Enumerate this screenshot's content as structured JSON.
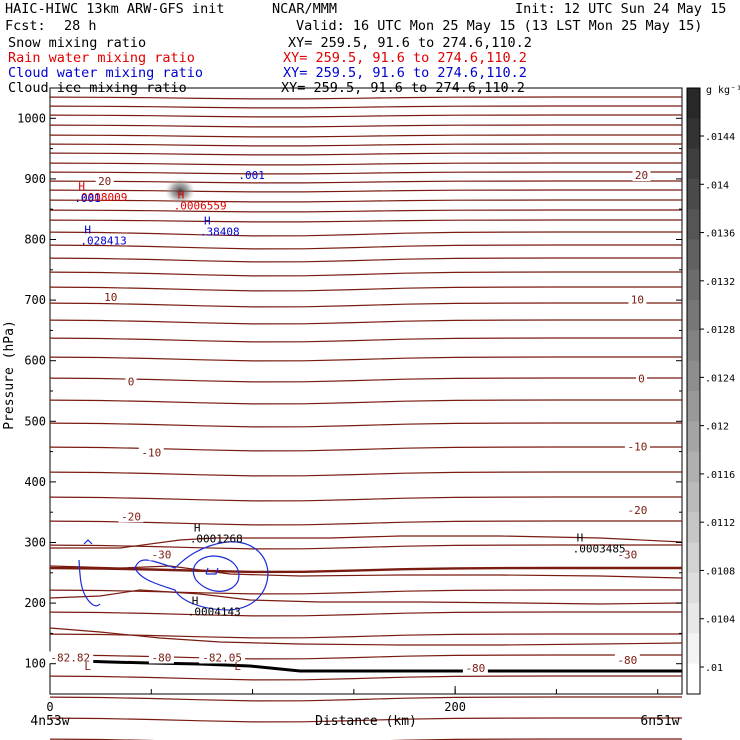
{
  "header": {
    "model": "HAIC-HIWC 13km ARW-GFS init",
    "org": "NCAR/MMM",
    "init": "Init: 12 UTC Sun 24 May 15",
    "fcst_label": "Fcst:",
    "fcst_value": "28 h",
    "valid": "Valid: 16 UTC Mon 25 May 15 (13 LST Mon 25 May 15)"
  },
  "fields": [
    {
      "name": "Snow mixing ratio",
      "xy": "XY= 259.5, 91.6 to 274.6,110.2",
      "color": "#000000"
    },
    {
      "name": "Rain water mixing ratio",
      "xy": "XY= 259.5, 91.6 to 274.6,110.2",
      "color": "#e00000"
    },
    {
      "name": "Cloud water mixing ratio",
      "xy": "XY= 259.5, 91.6 to 274.6,110.2",
      "color": "#0000d0"
    },
    {
      "name": "Cloud ice mixing ratio",
      "xy": "XY= 259.5, 91.6 to 274.6,110.2",
      "color": "#000000"
    }
  ],
  "chart_data": {
    "type": "contour-cross-section",
    "xlabel": "Distance (km)",
    "ylabel": "Pressure (hPa)",
    "xlim": [
      0,
      312
    ],
    "ylim": [
      1050,
      50
    ],
    "x_ticks": [
      0,
      200
    ],
    "y_ticks": [
      100,
      200,
      300,
      400,
      500,
      600,
      700,
      800,
      900,
      1000
    ],
    "x_endpoints": {
      "left": "4n53w",
      "right": "6n51w"
    },
    "temperature_contour_labels": [
      {
        "text": "-82.82",
        "x": 10,
        "p": 107
      },
      {
        "text": "-80",
        "x": 55,
        "p": 107
      },
      {
        "text": "-82.05",
        "x": 85,
        "p": 107
      },
      {
        "text": "-80",
        "x": 210,
        "p": 90
      },
      {
        "text": "-80",
        "x": 285,
        "p": 103
      },
      {
        "text": "-30",
        "x": 55,
        "p": 277
      },
      {
        "text": "-30",
        "x": 285,
        "p": 277
      },
      {
        "text": "-20",
        "x": 40,
        "p": 340
      },
      {
        "text": "-20",
        "x": 290,
        "p": 350
      },
      {
        "text": "-10",
        "x": 50,
        "p": 445
      },
      {
        "text": "-10",
        "x": 290,
        "p": 455
      },
      {
        "text": "0",
        "x": 40,
        "p": 562
      },
      {
        "text": "0",
        "x": 292,
        "p": 567
      },
      {
        "text": "10",
        "x": 30,
        "p": 702
      },
      {
        "text": "10",
        "x": 290,
        "p": 698
      },
      {
        "text": "20",
        "x": 27,
        "p": 893
      },
      {
        "text": "20",
        "x": 292,
        "p": 903
      }
    ],
    "extrema": [
      {
        "type": "L",
        "value": "-82.82",
        "x": 17,
        "p": 90,
        "color": "#7a1b10"
      },
      {
        "type": "L",
        "value": "-82.05",
        "x": 91,
        "p": 90,
        "color": "#7a1b10"
      },
      {
        "type": "H",
        "value": ".0004143",
        "x": 70,
        "p": 198,
        "color": "#000000"
      },
      {
        "type": "H",
        "value": ".0001268",
        "x": 71,
        "p": 318,
        "color": "#000000"
      },
      {
        "type": "H",
        "value": ".0003485",
        "x": 260,
        "p": 302,
        "color": "#000000"
      },
      {
        "type": "H",
        "value": ".028413",
        "x": 17,
        "p": 810,
        "color": "#0000d0"
      },
      {
        "type": "H",
        "value": ".38408",
        "x": 76,
        "p": 825,
        "color": "#0000d0"
      },
      {
        "type": "H",
        "value": ".0008009",
        "x": 14,
        "p": 882,
        "color": "#e00000"
      },
      {
        "type": "H",
        "value": ".0006559",
        "x": 63,
        "p": 868,
        "color": "#e00000"
      }
    ],
    "cloud_water_labels": [
      {
        "text": ".001",
        "x": 12,
        "p": 862
      },
      {
        "text": ".001",
        "x": 93,
        "p": 900
      }
    ],
    "colorbar": {
      "unit": "g kg⁻¹",
      "ticks": [
        ".0144",
        ".014",
        ".0136",
        ".0132",
        ".0128",
        ".0124",
        ".012",
        ".0116",
        ".0112",
        ".0108",
        ".0104",
        ".01"
      ]
    }
  }
}
